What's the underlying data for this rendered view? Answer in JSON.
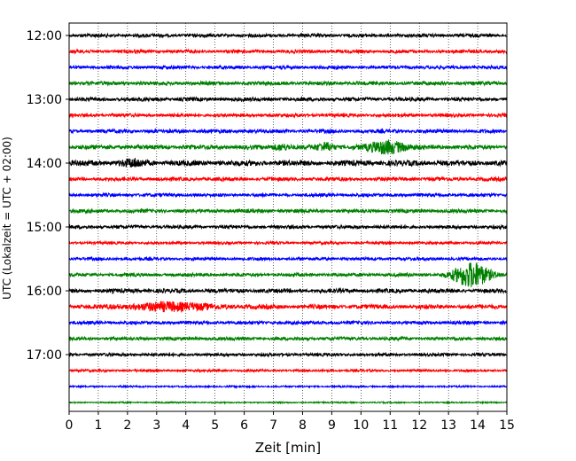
{
  "chart_data": {
    "type": "line",
    "title": "",
    "xlabel": "Zeit  [min]",
    "ylabel": "UTC (Lokalzeit = UTC + 02:00)",
    "xlim": [
      0,
      15
    ],
    "x_ticks": [
      "0",
      "1",
      "2",
      "3",
      "4",
      "5",
      "6",
      "7",
      "8",
      "9",
      "10",
      "11",
      "12",
      "13",
      "14",
      "15"
    ],
    "y_tick_labels": [
      "12:00",
      "13:00",
      "14:00",
      "15:00",
      "16:00",
      "17:00"
    ],
    "grid": "vertical dotted",
    "trace_interval_min": 15,
    "colors": [
      "#000000",
      "#ff0000",
      "#0000ff",
      "#008000"
    ],
    "traces": [
      {
        "start": "12:00",
        "color": "#000000",
        "amp": 1.0
      },
      {
        "start": "12:15",
        "color": "#ff0000",
        "amp": 1.0
      },
      {
        "start": "12:30",
        "color": "#0000ff",
        "amp": 1.0
      },
      {
        "start": "12:45",
        "color": "#008000",
        "amp": 1.1
      },
      {
        "start": "13:00",
        "color": "#000000",
        "amp": 1.1
      },
      {
        "start": "13:15",
        "color": "#ff0000",
        "amp": 1.0
      },
      {
        "start": "13:30",
        "color": "#0000ff",
        "amp": 1.1
      },
      {
        "start": "13:45",
        "color": "#008000",
        "amp": 1.3
      },
      {
        "start": "14:00",
        "color": "#000000",
        "amp": 1.6
      },
      {
        "start": "14:15",
        "color": "#ff0000",
        "amp": 1.1
      },
      {
        "start": "14:30",
        "color": "#0000ff",
        "amp": 1.0
      },
      {
        "start": "14:45",
        "color": "#008000",
        "amp": 1.1
      },
      {
        "start": "15:00",
        "color": "#000000",
        "amp": 1.0
      },
      {
        "start": "15:15",
        "color": "#ff0000",
        "amp": 0.8
      },
      {
        "start": "15:30",
        "color": "#0000ff",
        "amp": 0.9
      },
      {
        "start": "15:45",
        "color": "#008000",
        "amp": 1.0
      },
      {
        "start": "16:00",
        "color": "#000000",
        "amp": 1.2
      },
      {
        "start": "16:15",
        "color": "#ff0000",
        "amp": 1.3
      },
      {
        "start": "16:30",
        "color": "#0000ff",
        "amp": 1.0
      },
      {
        "start": "16:45",
        "color": "#008000",
        "amp": 1.0
      },
      {
        "start": "17:00",
        "color": "#000000",
        "amp": 0.9
      },
      {
        "start": "17:15",
        "color": "#ff0000",
        "amp": 0.7
      },
      {
        "start": "17:30",
        "color": "#0000ff",
        "amp": 0.5
      },
      {
        "start": "17:45",
        "color": "#008000",
        "amp": 0.4
      }
    ],
    "events": [
      {
        "trace": "13:45",
        "center_min": 10.9,
        "width_min": 0.6,
        "amp": 7
      },
      {
        "trace": "13:45",
        "center_min": 8.8,
        "width_min": 0.3,
        "amp": 4
      },
      {
        "trace": "13:45",
        "center_min": 7.3,
        "width_min": 0.3,
        "amp": 3
      },
      {
        "trace": "15:45",
        "center_min": 13.8,
        "width_min": 0.6,
        "amp": 14
      },
      {
        "trace": "16:15",
        "center_min": 3.5,
        "width_min": 1.3,
        "amp": 4
      },
      {
        "trace": "14:00",
        "center_min": 2.2,
        "width_min": 0.4,
        "amp": 3
      }
    ]
  }
}
